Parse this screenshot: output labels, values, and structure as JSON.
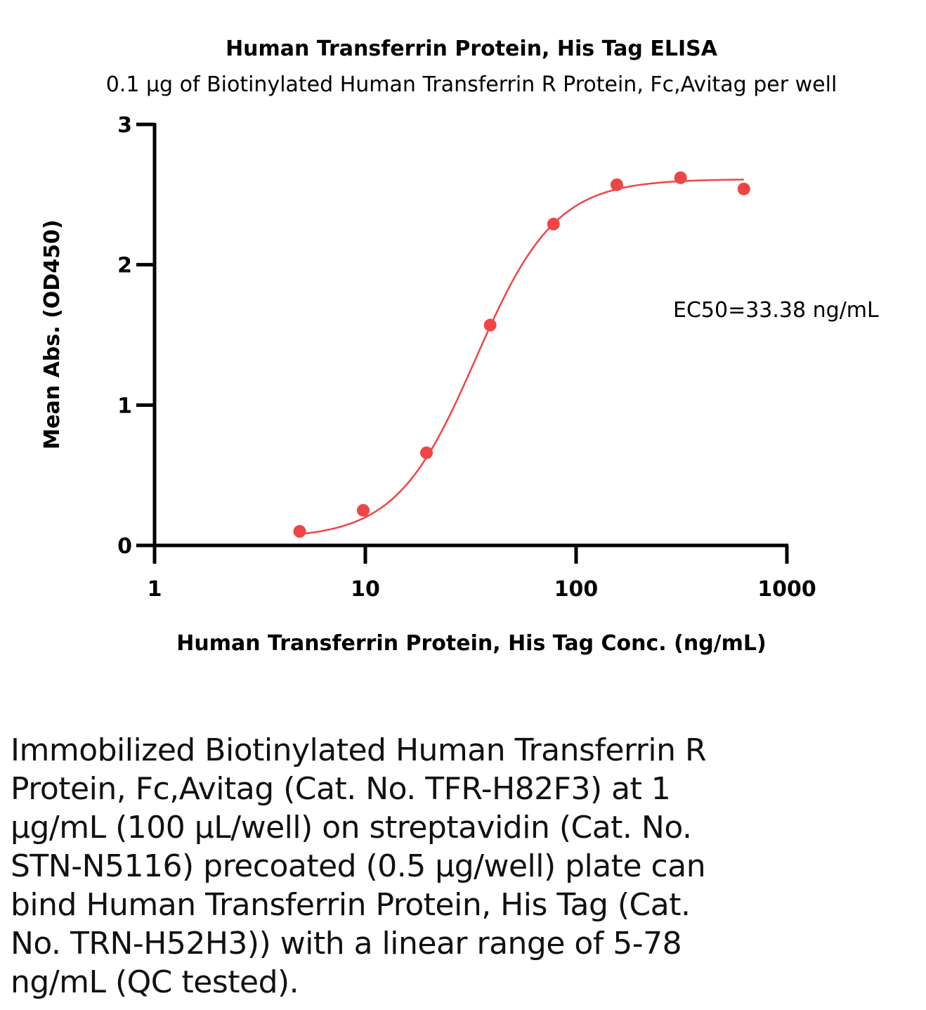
{
  "chart_data": {
    "type": "scatter",
    "title": "Human Transferrin Protein, His Tag ELISA",
    "subtitle": "0.1 µg of Biotinylated Human Transferrin R Protein, Fc,Avitag per well",
    "xlabel": "Human Transferrin Protein, His Tag Conc. (ng/mL)",
    "ylabel": "Mean Abs. (OD450)",
    "xscale": "log",
    "xlim": [
      1,
      1000
    ],
    "ylim": [
      0,
      3
    ],
    "x_ticks": [
      1,
      10,
      100,
      1000
    ],
    "x_tick_labels": [
      "1",
      "10",
      "100",
      "1000"
    ],
    "y_ticks": [
      0,
      1,
      2,
      3
    ],
    "y_tick_labels": [
      "0",
      "1",
      "2",
      "3"
    ],
    "grid": false,
    "color": "#ef4545",
    "series": [
      {
        "x": [
          4.88,
          9.77,
          19.5,
          39.1,
          78.1,
          156,
          313,
          625
        ],
        "y": [
          0.1,
          0.25,
          0.66,
          1.57,
          2.29,
          2.57,
          2.62,
          2.54
        ]
      }
    ],
    "fit": {
      "type": "4PL",
      "bottom": 0.05,
      "top": 2.61,
      "ec50": 33.38,
      "hill": 2.3
    },
    "annotation": "EC50=33.38 ng/mL"
  },
  "caption_lines": [
    "Immobilized Biotinylated Human Transferrin R",
    "Protein, Fc,Avitag (Cat. No. TFR-H82F3) at 1",
    "µg/mL (100 µL/well) on streptavidin (Cat. No.",
    "STN-N5116) precoated (0.5 µg/well) plate can",
    "bind Human Transferrin Protein, His Tag (Cat.",
    "No. TRN-H52H3)) with a linear range of 5-78",
    "ng/mL (QC tested)."
  ]
}
